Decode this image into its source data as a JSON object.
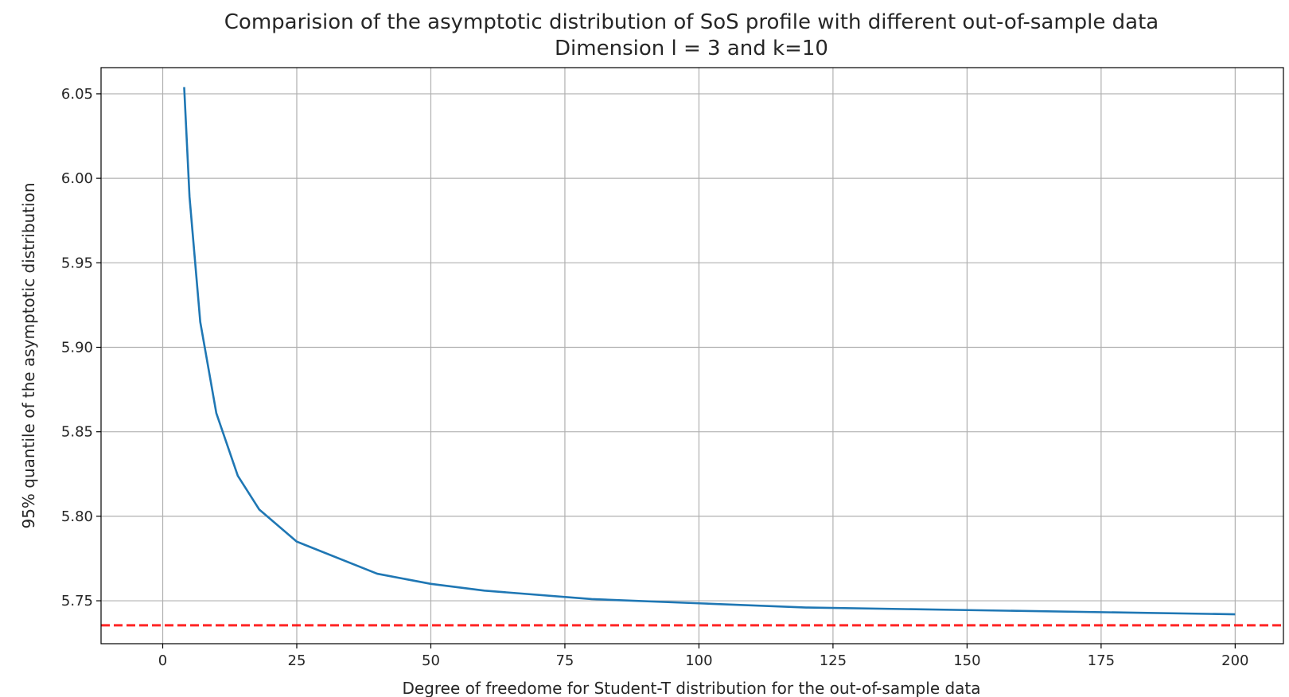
{
  "chart_data": {
    "type": "line",
    "title": "Comparision of the asymptotic distribution of SoS profile with different out-of-sample data",
    "subtitle": "Dimension l = 3 and k=10",
    "xlabel": "Degree of freedome for Student-T distribution for the out-of-sample data",
    "ylabel": "95% quantile of the asymptotic distribution",
    "xlim": [
      -11.5,
      209
    ],
    "ylim": [
      5.7246,
      6.0655
    ],
    "xticks": [
      0,
      25,
      50,
      75,
      100,
      125,
      150,
      175,
      200
    ],
    "yticks": [
      5.75,
      5.8,
      5.85,
      5.9,
      5.95,
      6.0,
      6.05
    ],
    "ytick_labels": [
      "5.75",
      "5.80",
      "5.85",
      "5.90",
      "5.95",
      "6.00",
      "6.05"
    ],
    "grid": true,
    "series": [
      {
        "color": "#1f77b4",
        "x": [
          4,
          5,
          7,
          10,
          14,
          18,
          25,
          40,
          50,
          60,
          80,
          100,
          120,
          150,
          200
        ],
        "y": [
          6.054,
          5.989,
          5.915,
          5.861,
          5.824,
          5.804,
          5.785,
          5.766,
          5.76,
          5.756,
          5.751,
          5.7485,
          5.746,
          5.7445,
          5.742
        ]
      }
    ],
    "reference_line": {
      "y": 5.7355,
      "color": "#ff0000",
      "style": "dashed"
    }
  }
}
